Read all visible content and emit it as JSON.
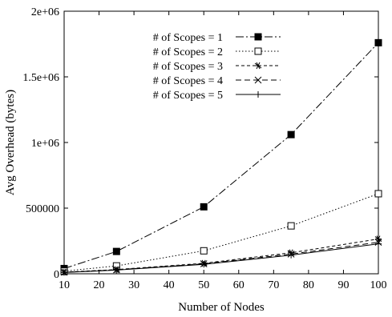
{
  "chart_data": {
    "type": "line",
    "xlabel": "Number of Nodes",
    "ylabel": "Avg Overhead (bytes)",
    "xlim": [
      10,
      100
    ],
    "ylim": [
      0,
      2000000
    ],
    "x_ticks": [
      10,
      20,
      30,
      40,
      50,
      60,
      70,
      80,
      90,
      100
    ],
    "y_ticks": [
      0,
      500000,
      1000000,
      1500000,
      2000000
    ],
    "y_tick_labels": [
      "0",
      "500000",
      "1e+06",
      "1.5e+06",
      "2e+06"
    ],
    "grid": false,
    "legend_position": "top-left",
    "x": [
      10,
      25,
      50,
      75,
      100
    ],
    "series": [
      {
        "name": "# of Scopes = 1",
        "marker": "filled-square",
        "dash": "dash-dot",
        "values": [
          40000,
          170000,
          510000,
          1060000,
          1760000
        ]
      },
      {
        "name": "# of Scopes = 2",
        "marker": "open-square",
        "dash": "dotted",
        "values": [
          20000,
          60000,
          175000,
          365000,
          610000
        ]
      },
      {
        "name": "# of Scopes = 3",
        "marker": "asterisk",
        "dash": "short-dash",
        "values": [
          12000,
          32000,
          80000,
          160000,
          265000
        ]
      },
      {
        "name": "# of Scopes = 4",
        "marker": "x",
        "dash": "long-dash",
        "values": [
          11000,
          30000,
          76000,
          150000,
          240000
        ]
      },
      {
        "name": "# of Scopes = 5",
        "marker": "plus",
        "dash": "solid",
        "values": [
          10000,
          28000,
          72000,
          142000,
          228000
        ]
      }
    ]
  }
}
